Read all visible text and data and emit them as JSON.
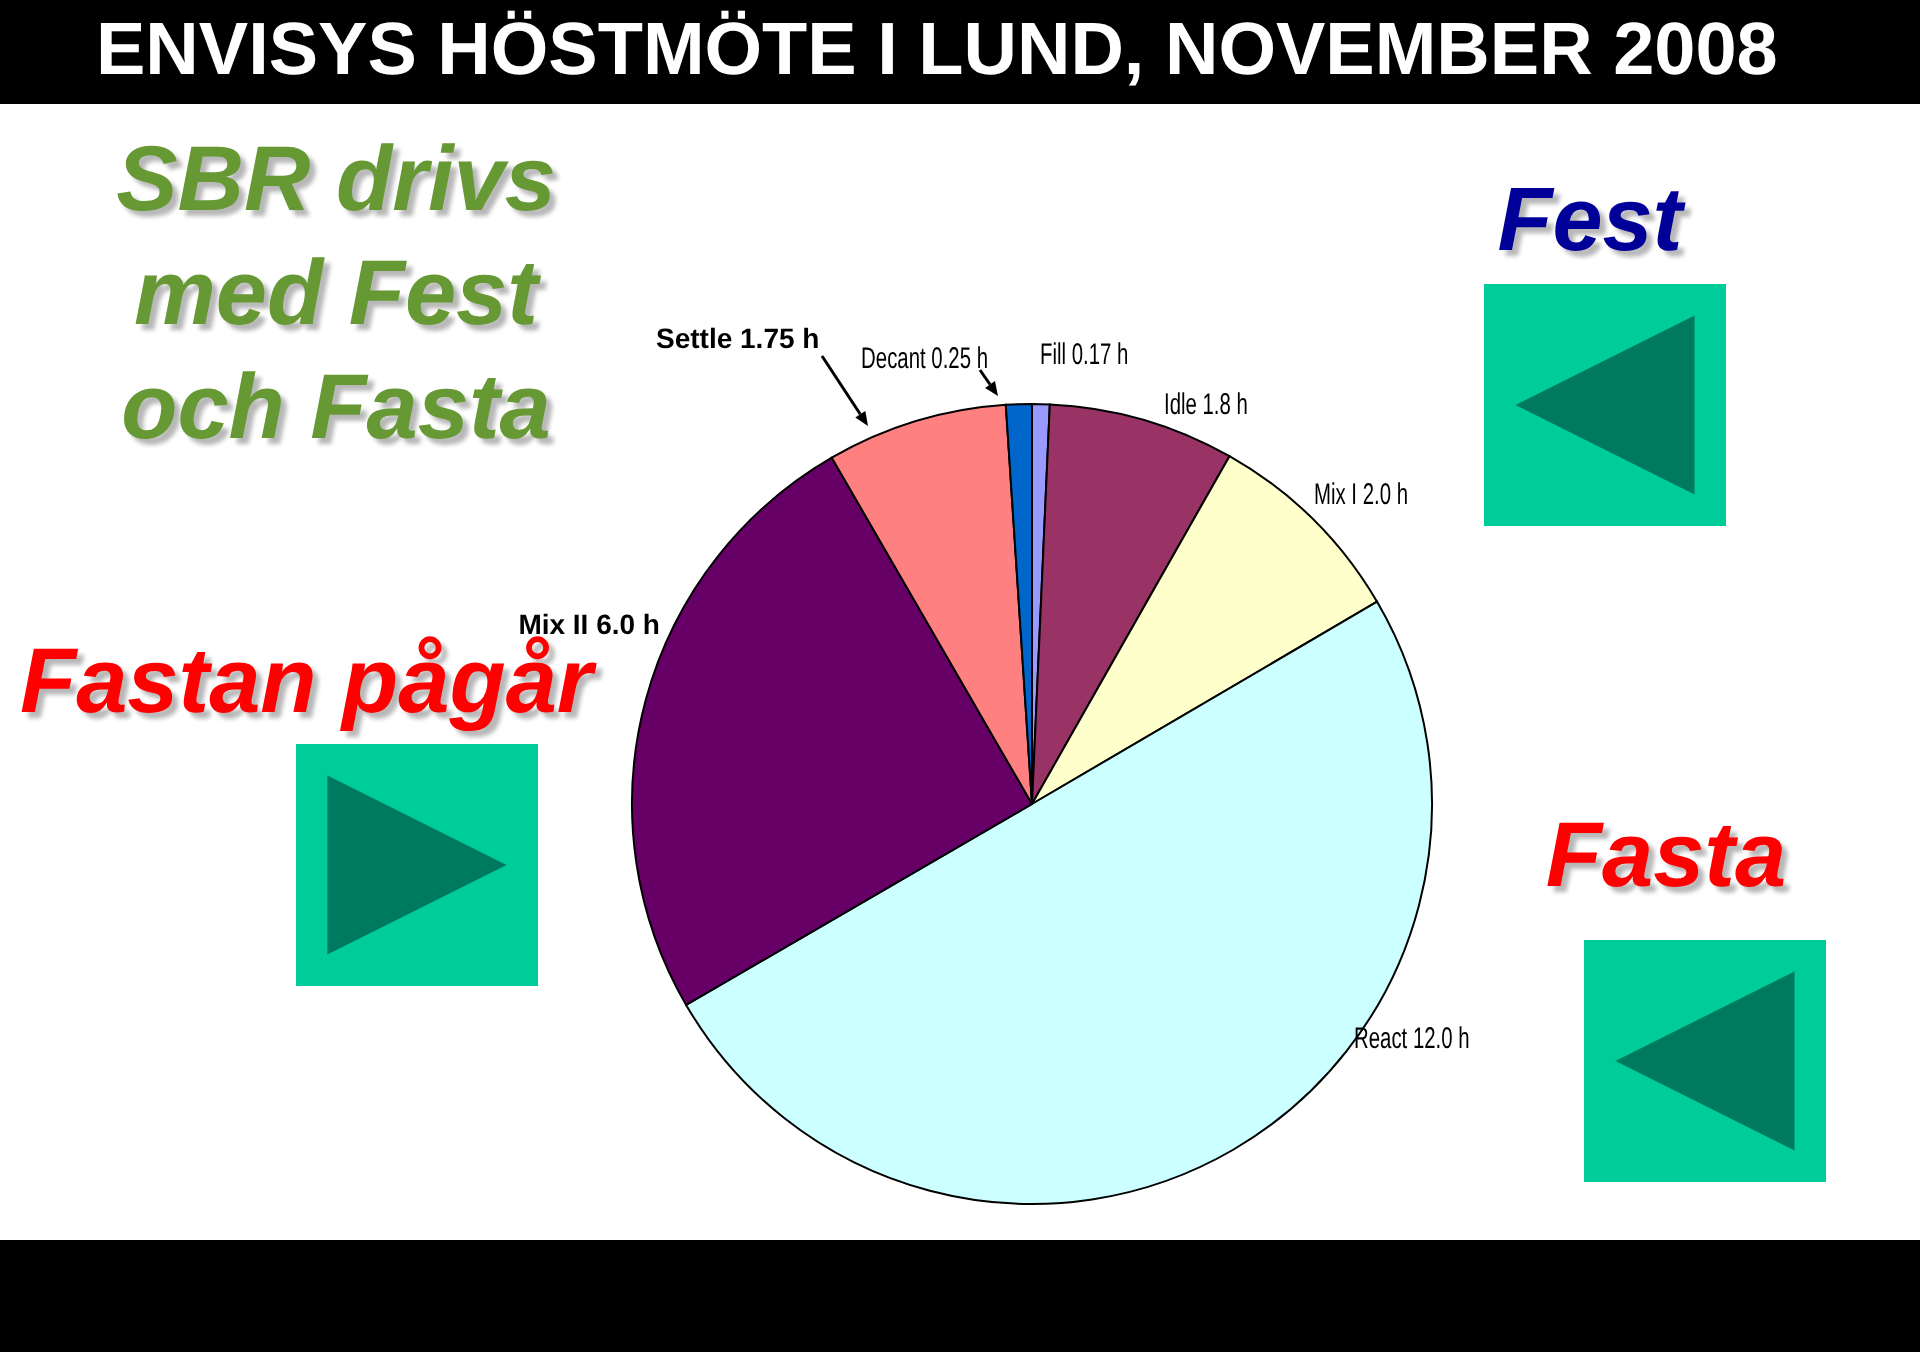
{
  "chart_data": {
    "type": "pie",
    "title": "ENVISYS HÖSTMÖTE I LUND, NOVEMBER 2008",
    "categories": [
      "Fill",
      "Idle",
      "Mix I",
      "React",
      "Mix II",
      "Settle",
      "Decant"
    ],
    "values": [
      0.17,
      1.8,
      2.0,
      12.0,
      6.0,
      1.75,
      0.25
    ],
    "value_labels": [
      "0.17 h",
      "1.8 h",
      "2.0 h",
      "12.0 h",
      "6.0 h",
      "1.75 h",
      "0.25 h"
    ],
    "colors": [
      "#9999ff",
      "#993366",
      "#ffffcc",
      "#ccffff",
      "#660066",
      "#ff8080",
      "#0066cc"
    ],
    "annotations": [
      "SBR drivs med Fest och Fasta",
      "Fest",
      "Fastan pågår",
      "Fasta"
    ]
  }
}
